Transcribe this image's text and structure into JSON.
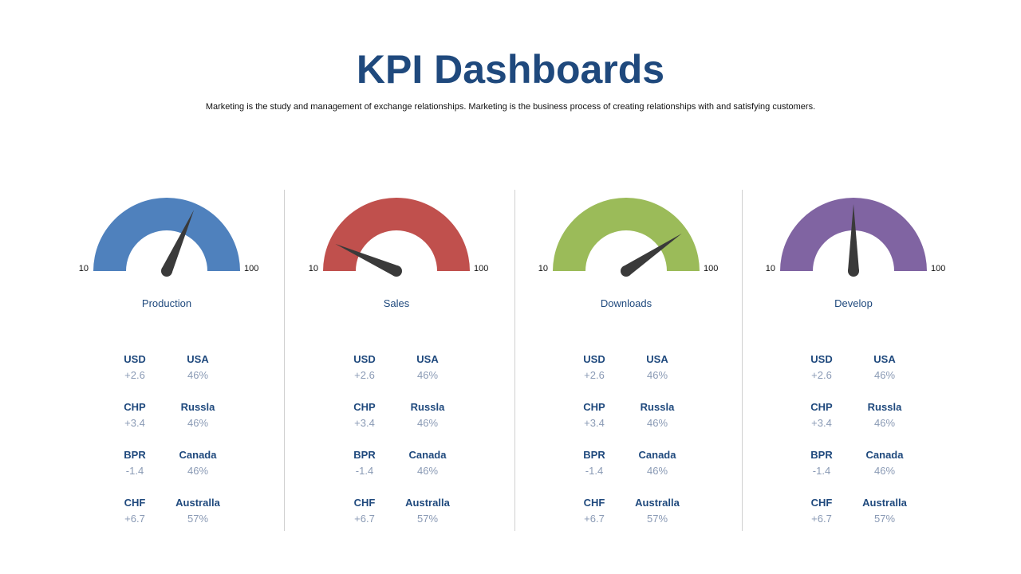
{
  "header": {
    "title": "KPI Dashboards",
    "subtitle": "Marketing is the study and management of exchange relationships. Marketing is the  business process of creating relationships with and satisfying customers."
  },
  "needle_color": "#3a3a3a",
  "chart_data": [
    {
      "type": "gauge",
      "label": "Production",
      "min": 10,
      "max": 100,
      "value": 67,
      "min_label": "10",
      "max_label": "100",
      "color": "#4f81bd",
      "stats": [
        {
          "currency": "USD",
          "change": "+2.6",
          "region": "USA",
          "share": "46%"
        },
        {
          "currency": "CHP",
          "change": "+3.4",
          "region": "Russla",
          "share": "46%"
        },
        {
          "currency": "BPR",
          "change": "-1.4",
          "region": "Canada",
          "share": "46%"
        },
        {
          "currency": "CHF",
          "change": "+6.7",
          "region": "Australla",
          "share": "57%"
        }
      ]
    },
    {
      "type": "gauge",
      "label": "Sales",
      "min": 10,
      "max": 100,
      "value": 22,
      "min_label": "10",
      "max_label": "100",
      "color": "#c0504d",
      "stats": [
        {
          "currency": "USD",
          "change": "+2.6",
          "region": "USA",
          "share": "46%"
        },
        {
          "currency": "CHP",
          "change": "+3.4",
          "region": "Russla",
          "share": "46%"
        },
        {
          "currency": "BPR",
          "change": "-1.4",
          "region": "Canada",
          "share": "46%"
        },
        {
          "currency": "CHF",
          "change": "+6.7",
          "region": "Australla",
          "share": "57%"
        }
      ]
    },
    {
      "type": "gauge",
      "label": "Downloads",
      "min": 10,
      "max": 100,
      "value": 83,
      "min_label": "10",
      "max_label": "100",
      "color": "#9bbb59",
      "stats": [
        {
          "currency": "USD",
          "change": "+2.6",
          "region": "USA",
          "share": "46%"
        },
        {
          "currency": "CHP",
          "change": "+3.4",
          "region": "Russla",
          "share": "46%"
        },
        {
          "currency": "BPR",
          "change": "-1.4",
          "region": "Canada",
          "share": "46%"
        },
        {
          "currency": "CHF",
          "change": "+6.7",
          "region": "Australla",
          "share": "57%"
        }
      ]
    },
    {
      "type": "gauge",
      "label": "Develop",
      "min": 10,
      "max": 100,
      "value": 55,
      "min_label": "10",
      "max_label": "100",
      "color": "#8064a2",
      "stats": [
        {
          "currency": "USD",
          "change": "+2.6",
          "region": "USA",
          "share": "46%"
        },
        {
          "currency": "CHP",
          "change": "+3.4",
          "region": "Russla",
          "share": "46%"
        },
        {
          "currency": "BPR",
          "change": "-1.4",
          "region": "Canada",
          "share": "46%"
        },
        {
          "currency": "CHF",
          "change": "+6.7",
          "region": "Australla",
          "share": "57%"
        }
      ]
    }
  ]
}
